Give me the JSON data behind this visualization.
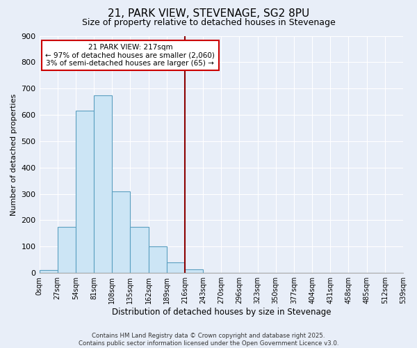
{
  "title": "21, PARK VIEW, STEVENAGE, SG2 8PU",
  "subtitle": "Size of property relative to detached houses in Stevenage",
  "xlabel": "Distribution of detached houses by size in Stevenage",
  "ylabel": "Number of detached properties",
  "bin_labels": [
    "0sqm",
    "27sqm",
    "54sqm",
    "81sqm",
    "108sqm",
    "135sqm",
    "162sqm",
    "189sqm",
    "216sqm",
    "243sqm",
    "270sqm",
    "296sqm",
    "323sqm",
    "350sqm",
    "377sqm",
    "404sqm",
    "431sqm",
    "458sqm",
    "485sqm",
    "512sqm",
    "539sqm"
  ],
  "bar_values": [
    10,
    175,
    615,
    675,
    310,
    175,
    100,
    40,
    15,
    0,
    0,
    0,
    0,
    0,
    0,
    0,
    0,
    0,
    0,
    0
  ],
  "bar_color": "#cce5f5",
  "bar_edge_color": "#5a9fc0",
  "vline_x": 8,
  "vline_color": "#8b0000",
  "annotation_text": "21 PARK VIEW: 217sqm\n← 97% of detached houses are smaller (2,060)\n3% of semi-detached houses are larger (65) →",
  "annotation_box_color": "white",
  "annotation_box_edge": "#cc0000",
  "ylim": [
    0,
    900
  ],
  "yticks": [
    0,
    100,
    200,
    300,
    400,
    500,
    600,
    700,
    800,
    900
  ],
  "bg_color": "#e8eef8",
  "footer_line1": "Contains HM Land Registry data © Crown copyright and database right 2025.",
  "footer_line2": "Contains public sector information licensed under the Open Government Licence v3.0.",
  "title_fontsize": 11,
  "subtitle_fontsize": 9
}
